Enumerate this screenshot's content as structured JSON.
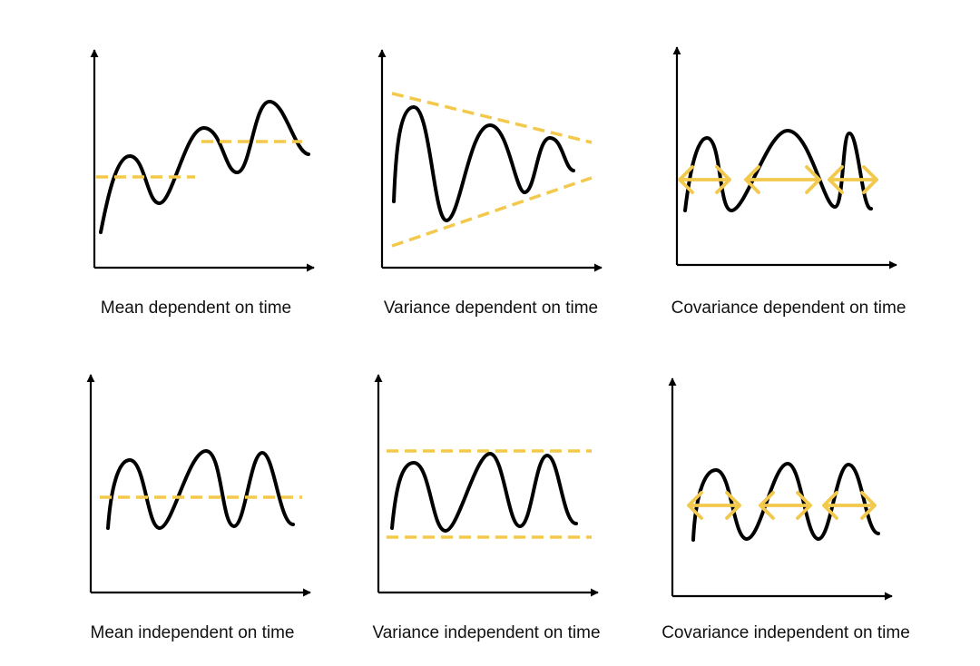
{
  "colors": {
    "axis": "#000000",
    "curve": "#000000",
    "accent": "#F2C94C"
  },
  "captions": {
    "mean_dependent": "Mean dependent on time",
    "variance_dependent": "Variance dependent on time",
    "covariance_dependent": "Covariance dependent on time",
    "mean_independent": "Mean independent on time",
    "variance_independent": "Variance independent on time",
    "covariance_independent": "Covariance independent on time"
  }
}
